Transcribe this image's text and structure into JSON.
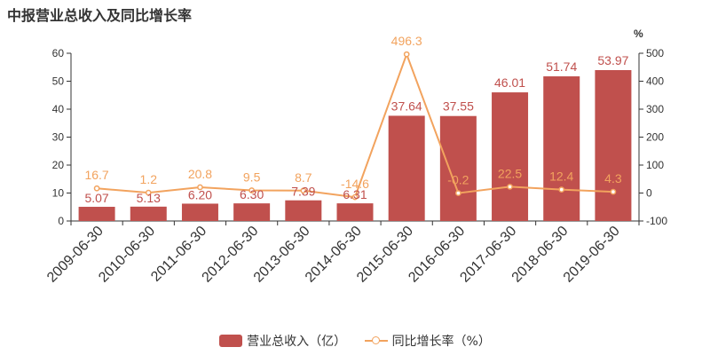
{
  "title": "中报营业总收入及同比增长率",
  "colors": {
    "bar": "#c0504d",
    "line": "#f2a35e",
    "axis": "#333333",
    "grid": "#cccccc"
  },
  "chart_data": {
    "type": "bar",
    "title": "中报营业总收入及同比增长率",
    "categories": [
      "2009-06-30",
      "2010-06-30",
      "2011-06-30",
      "2012-06-30",
      "2013-06-30",
      "2014-06-30",
      "2015-06-30",
      "2016-06-30",
      "2017-06-30",
      "2018-06-30",
      "2019-06-30"
    ],
    "series": [
      {
        "name": "营业总收入（亿）",
        "type": "bar",
        "axis": "left",
        "values": [
          5.07,
          5.13,
          6.2,
          6.3,
          7.39,
          6.31,
          37.64,
          37.55,
          46.01,
          51.74,
          53.97
        ],
        "labels": [
          "5.07",
          "5.13",
          "6.20",
          "6.30",
          "7.39",
          "6.31",
          "37.64",
          "37.55",
          "46.01",
          "51.74",
          "53.97"
        ]
      },
      {
        "name": "同比增长率（%）",
        "type": "line",
        "axis": "right",
        "values": [
          16.7,
          1.2,
          20.8,
          9.5,
          8.7,
          -14.6,
          496.3,
          -0.2,
          22.5,
          12.4,
          4.3
        ],
        "labels": [
          "16.7",
          "1.2",
          "20.8",
          "9.5",
          "8.7",
          "-14.6",
          "496.3",
          "-0.2",
          "22.5",
          "12.4",
          "4.3"
        ]
      }
    ],
    "y_left": {
      "lim": [
        0,
        60
      ],
      "ticks": [
        "0",
        "10",
        "20",
        "30",
        "40",
        "50",
        "60"
      ]
    },
    "y_right": {
      "lim": [
        -100,
        500
      ],
      "ticks": [
        "-100",
        "0",
        "100",
        "200",
        "300",
        "400",
        "500"
      ],
      "unit": "%"
    },
    "grid": false,
    "legend": "bottom"
  },
  "legend": {
    "bar_label": "营业总收入（亿）",
    "line_label": "同比增长率（%）"
  }
}
